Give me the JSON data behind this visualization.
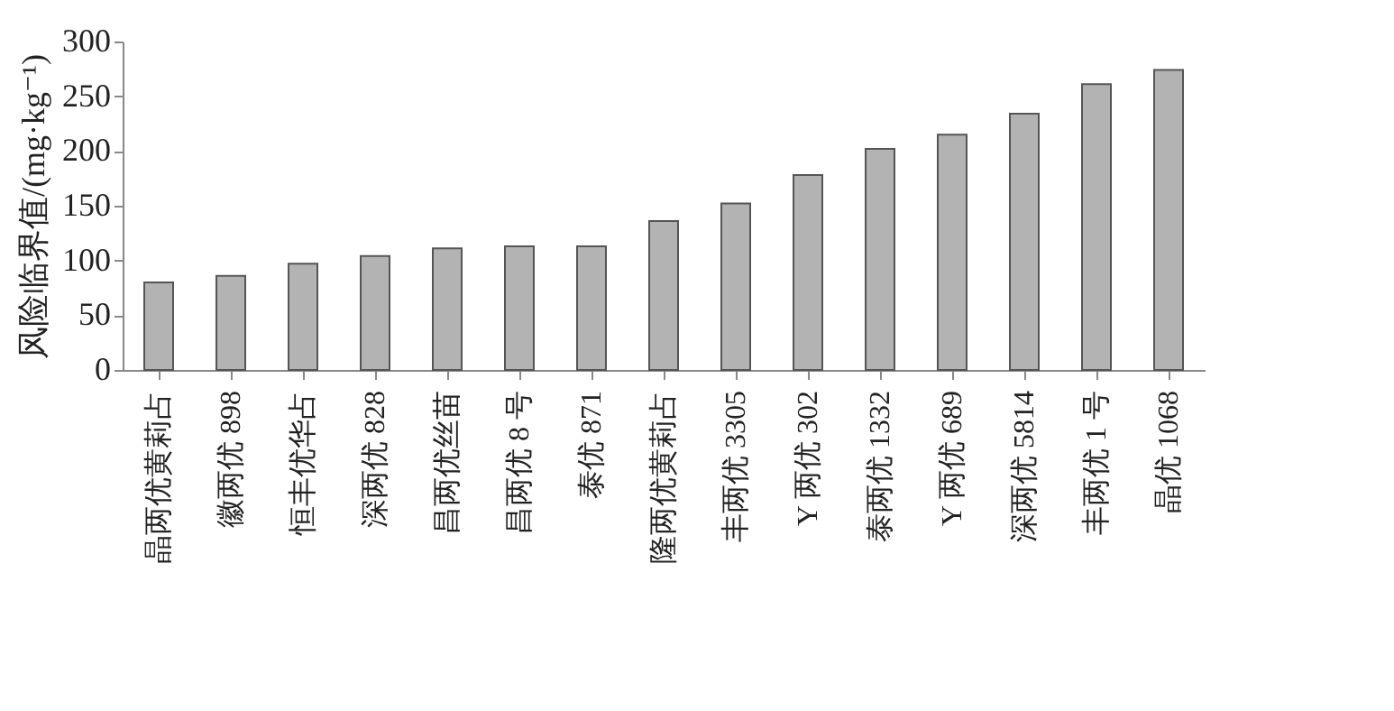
{
  "chart_data": {
    "type": "bar",
    "ylabel": "风险临界值/(mg·kg⁻¹)",
    "categories": [
      "晶两优黄莉占",
      "徽两优 898",
      "恒丰优华占",
      "深两优 828",
      "昌两优丝苗",
      "昌两优 8 号",
      "泰优 871",
      "隆两优黄莉占",
      "丰两优 3305",
      "Y 两优 302",
      "泰两优 1332",
      "Y 两优 689",
      "深两优 5814",
      "丰两优 1 号",
      "晶优 1068"
    ],
    "values": [
      80,
      86,
      97,
      104,
      111,
      113,
      113,
      136,
      152,
      178,
      202,
      215,
      234,
      261,
      274
    ],
    "color": "#b3b3b3",
    "ylim": [
      0,
      300
    ],
    "yticks": [
      0,
      50,
      100,
      150,
      200,
      250,
      300
    ],
    "grid": false
  }
}
